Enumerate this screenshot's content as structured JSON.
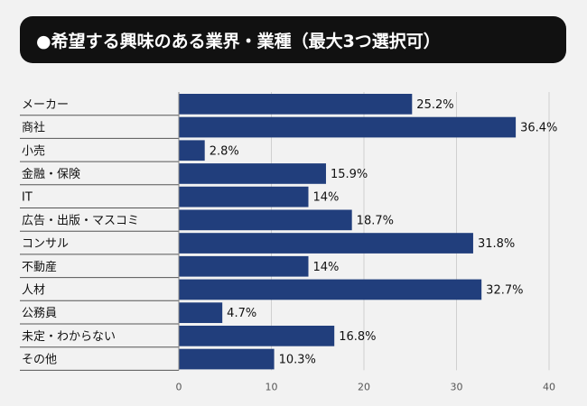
{
  "title": "●希望する興味のある業界・業種（最大3つ選択可）",
  "chart_data": {
    "type": "bar",
    "orientation": "horizontal",
    "title": "●希望する興味のある業界・業種（最大3つ選択可）",
    "categories": [
      "メーカー",
      "商社",
      "小売",
      "金融・保険",
      "IT",
      "広告・出版・マスコミ",
      "コンサル",
      "不動産",
      "人材",
      "公務員",
      "未定・わからない",
      "その他"
    ],
    "values": [
      25.2,
      36.4,
      2.8,
      15.9,
      14,
      18.7,
      31.8,
      14,
      32.7,
      4.7,
      16.8,
      10.3
    ],
    "value_labels": [
      "25.2%",
      "36.4%",
      "2.8%",
      "15.9%",
      "14%",
      "18.7%",
      "31.8%",
      "14%",
      "32.7%",
      "4.7%",
      "16.8%",
      "10.3%"
    ],
    "x_ticks": [
      "0",
      "10",
      "20",
      "30",
      "40"
    ],
    "xlim": [
      0,
      40
    ],
    "xlabel": "",
    "ylabel": "",
    "grid": "vertical",
    "colors": {
      "bar": "#213e7c",
      "grid": "#d0d0d0",
      "separator": "#555555"
    }
  }
}
